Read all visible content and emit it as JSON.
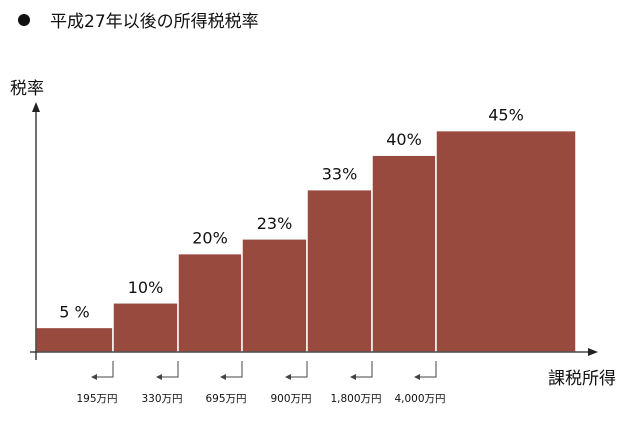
{
  "title": "平成27年以後の所得税税率",
  "colors": {
    "bar_fill": "#994a3f",
    "bar_stroke": "#ffffff",
    "axis": "#222222",
    "text": "#111111"
  },
  "chart_data": {
    "type": "bar",
    "title": "平成27年以後の所得税税率",
    "ylabel": "税率",
    "xlabel": "課税所得",
    "categories": [
      "195万円以下",
      "195万円〜330万円",
      "330万円〜695万円",
      "695万円〜900万円",
      "900万円〜1,800万円",
      "1,800万円〜4,000万円",
      "4,000万円超"
    ],
    "values": [
      5,
      10,
      20,
      23,
      33,
      40,
      45
    ],
    "value_labels": [
      "5 %",
      "10%",
      "20%",
      "23%",
      "33%",
      "40%",
      "45%"
    ],
    "thresholds": [
      "195万円",
      "330万円",
      "695万円",
      "900万円",
      "1,800万円",
      "4,000万円"
    ],
    "ylim": [
      0,
      50
    ],
    "grid": false,
    "legend": "none"
  }
}
